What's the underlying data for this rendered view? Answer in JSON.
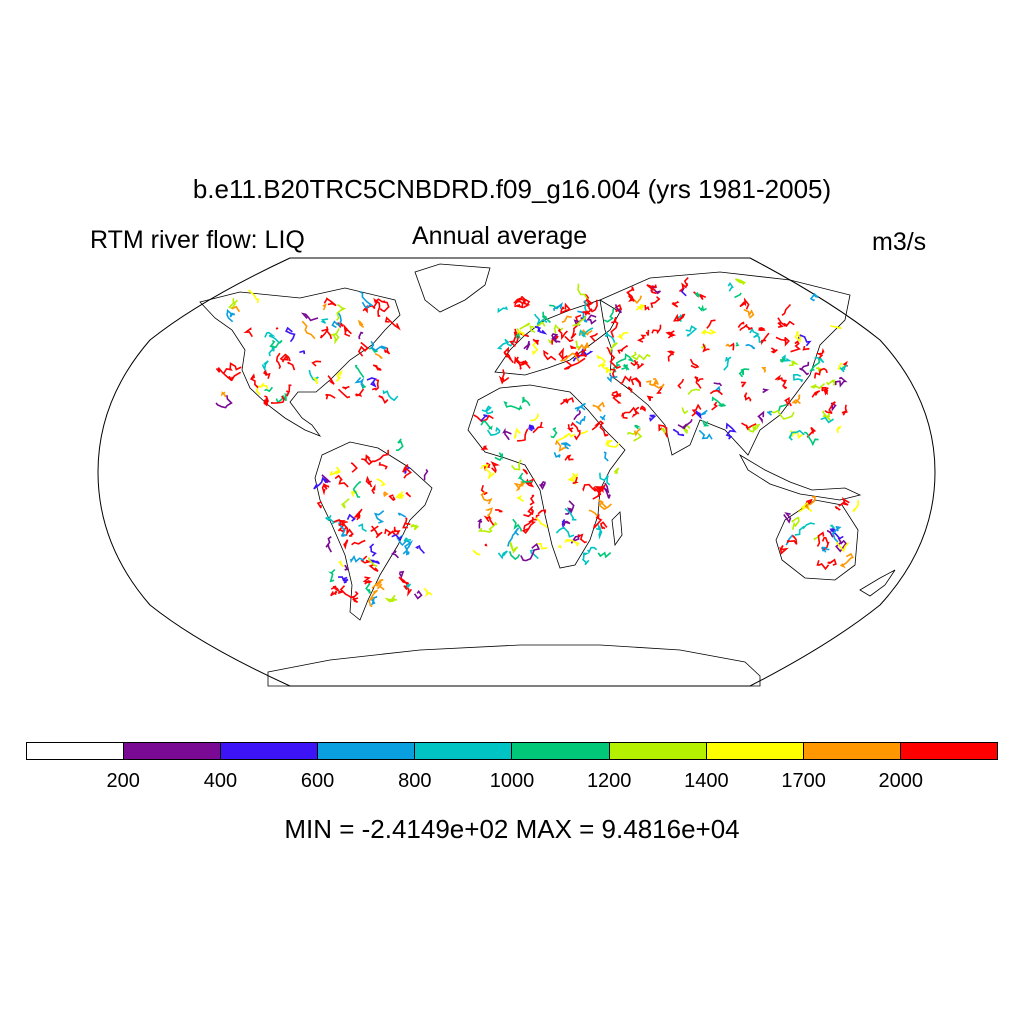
{
  "title": "b.e11.B20TRC5CNBDRD.f09_g16.004 (yrs 1981-2005)",
  "left_subtitle": "RTM river flow: LIQ",
  "center_subtitle": "Annual average",
  "right_subtitle": "m3/s",
  "stats": "MIN = -2.4149e+02 MAX = 9.4816e+04",
  "map": {
    "projection": "Robinson",
    "field": "river flow",
    "background": "#ffffff"
  },
  "colorbar": {
    "colors": [
      "#ffffff",
      "#7a0a94",
      "#3d14f5",
      "#0aa0e0",
      "#00c4c4",
      "#00c878",
      "#b4f000",
      "#ffff00",
      "#ff9800",
      "#ff0000"
    ],
    "labels": [
      "200",
      "400",
      "600",
      "800",
      "1000",
      "1200",
      "1400",
      "1700",
      "2000"
    ]
  }
}
